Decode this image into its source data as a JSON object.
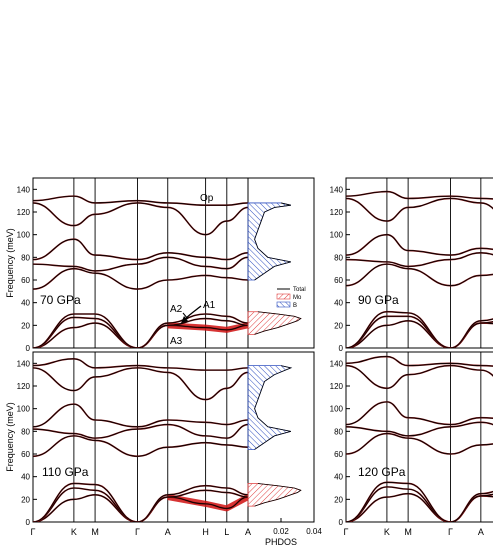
{
  "chart_data": [
    {
      "type": "line",
      "panel": "70 GPa",
      "label": "70 GPa",
      "ylabel": "Frequency (meV)",
      "ylim": [
        0,
        150
      ],
      "yticks": [
        0,
        20,
        40,
        60,
        80,
        100,
        120,
        140
      ],
      "path_labels": [
        "Γ",
        "K",
        "M",
        "Γ",
        "A",
        "H",
        "L",
        "A"
      ],
      "path_positions": [
        0,
        0.27,
        0.41,
        0.69,
        0.89,
        1.14,
        1.28,
        1.42
      ],
      "annotations": [
        "Op",
        "A1",
        "A2",
        "A3"
      ],
      "series": [
        {
          "x": [
            0,
            0.27,
            0.41,
            0.69,
            0.89,
            1.14,
            1.28,
            1.42
          ],
          "y": [
            0,
            18,
            22,
            0,
            20,
            18,
            16,
            20
          ]
        },
        {
          "x": [
            0,
            0.27,
            0.41,
            0.69,
            0.89,
            1.14,
            1.28,
            1.42
          ],
          "y": [
            0,
            27,
            26,
            0,
            20,
            26,
            24,
            20
          ]
        },
        {
          "x": [
            0,
            0.27,
            0.41,
            0.69,
            0.89,
            1.14,
            1.28,
            1.42
          ],
          "y": [
            0,
            30,
            30,
            0,
            22,
            30,
            28,
            22
          ]
        },
        {
          "x": [
            0,
            0.27,
            0.41,
            0.69,
            0.89,
            1.14,
            1.28,
            1.42
          ],
          "y": [
            52,
            70,
            66,
            52,
            60,
            64,
            62,
            60
          ]
        },
        {
          "x": [
            0,
            0.27,
            0.41,
            0.69,
            0.89,
            1.14,
            1.28,
            1.42
          ],
          "y": [
            74,
            72,
            68,
            74,
            80,
            72,
            70,
            80
          ]
        },
        {
          "x": [
            0,
            0.27,
            0.41,
            0.69,
            0.89,
            1.14,
            1.28,
            1.42
          ],
          "y": [
            78,
            96,
            82,
            78,
            84,
            80,
            78,
            84
          ]
        },
        {
          "x": [
            0,
            0.27,
            0.41,
            0.69,
            0.89,
            1.14,
            1.28,
            1.42
          ],
          "y": [
            128,
            108,
            118,
            128,
            124,
            100,
            112,
            124
          ]
        },
        {
          "x": [
            0,
            0.27,
            0.41,
            0.69,
            0.89,
            1.14,
            1.28,
            1.42
          ],
          "y": [
            130,
            134,
            128,
            130,
            128,
            126,
            126,
            128
          ]
        }
      ]
    },
    {
      "type": "line",
      "panel": "90 GPa",
      "label": "90 GPa",
      "ylim": [
        0,
        150
      ],
      "yticks": [
        0,
        20,
        40,
        60,
        80,
        100,
        120,
        140
      ],
      "path_labels": [
        "Γ",
        "K",
        "M",
        "Γ",
        "A"
      ],
      "path_positions": [
        0,
        0.27,
        0.41,
        0.69,
        0.89
      ],
      "series": [
        {
          "x": [
            0,
            0.27,
            0.41,
            0.69,
            0.89,
            1.14
          ],
          "y": [
            0,
            20,
            24,
            0,
            22,
            20
          ]
        },
        {
          "x": [
            0,
            0.27,
            0.41,
            0.69,
            0.89,
            1.14
          ],
          "y": [
            0,
            28,
            28,
            0,
            22,
            28
          ]
        },
        {
          "x": [
            0,
            0.27,
            0.41,
            0.69,
            0.89,
            1.14
          ],
          "y": [
            0,
            32,
            31,
            0,
            24,
            32
          ]
        },
        {
          "x": [
            0,
            0.27,
            0.41,
            0.69,
            0.89,
            1.14
          ],
          "y": [
            55,
            74,
            70,
            55,
            64,
            68
          ]
        },
        {
          "x": [
            0,
            0.27,
            0.41,
            0.69,
            0.89,
            1.14
          ],
          "y": [
            78,
            76,
            72,
            78,
            84,
            76
          ]
        },
        {
          "x": [
            0,
            0.27,
            0.41,
            0.69,
            0.89,
            1.14
          ],
          "y": [
            82,
            100,
            86,
            82,
            88,
            84
          ]
        },
        {
          "x": [
            0,
            0.27,
            0.41,
            0.69,
            0.89,
            1.14
          ],
          "y": [
            132,
            112,
            124,
            132,
            128,
            104
          ]
        },
        {
          "x": [
            0,
            0.27,
            0.41,
            0.69,
            0.89,
            1.14
          ],
          "y": [
            134,
            138,
            132,
            134,
            132,
            130
          ]
        }
      ]
    },
    {
      "type": "line",
      "panel": "110 GPa",
      "label": "110 GPa",
      "ylabel": "Frequency (meV)",
      "ylim": [
        0,
        150
      ],
      "yticks": [
        0,
        20,
        40,
        60,
        80,
        100,
        120,
        140
      ],
      "path_labels": [
        "Γ",
        "K",
        "M",
        "Γ",
        "A",
        "H",
        "L",
        "A"
      ],
      "path_positions": [
        0,
        0.27,
        0.41,
        0.69,
        0.89,
        1.14,
        1.28,
        1.42
      ],
      "series": [
        {
          "x": [
            0,
            0.27,
            0.41,
            0.69,
            0.89,
            1.14,
            1.28,
            1.42
          ],
          "y": [
            0,
            20,
            24,
            0,
            22,
            16,
            12,
            22
          ]
        },
        {
          "x": [
            0,
            0.27,
            0.41,
            0.69,
            0.89,
            1.14,
            1.28,
            1.42
          ],
          "y": [
            0,
            30,
            28,
            0,
            22,
            28,
            26,
            22
          ]
        },
        {
          "x": [
            0,
            0.27,
            0.41,
            0.69,
            0.89,
            1.14,
            1.28,
            1.42
          ],
          "y": [
            0,
            34,
            33,
            0,
            24,
            32,
            30,
            24
          ]
        },
        {
          "x": [
            0,
            0.27,
            0.41,
            0.69,
            0.89,
            1.14,
            1.28,
            1.42
          ],
          "y": [
            58,
            76,
            72,
            58,
            66,
            70,
            68,
            66
          ]
        },
        {
          "x": [
            0,
            0.27,
            0.41,
            0.69,
            0.89,
            1.14,
            1.28,
            1.42
          ],
          "y": [
            82,
            78,
            74,
            82,
            86,
            76,
            74,
            86
          ]
        },
        {
          "x": [
            0,
            0.27,
            0.41,
            0.69,
            0.89,
            1.14,
            1.28,
            1.42
          ],
          "y": [
            84,
            104,
            90,
            84,
            90,
            88,
            86,
            90
          ]
        },
        {
          "x": [
            0,
            0.27,
            0.41,
            0.69,
            0.89,
            1.14,
            1.28,
            1.42
          ],
          "y": [
            136,
            116,
            128,
            136,
            132,
            108,
            118,
            132
          ]
        },
        {
          "x": [
            0,
            0.27,
            0.41,
            0.69,
            0.89,
            1.14,
            1.28,
            1.42
          ],
          "y": [
            138,
            144,
            136,
            138,
            136,
            134,
            134,
            136
          ]
        }
      ]
    },
    {
      "type": "line",
      "panel": "120 GPa",
      "label": "120 GPa",
      "ylim": [
        0,
        150
      ],
      "yticks": [
        0,
        20,
        40,
        60,
        80,
        100,
        120,
        140
      ],
      "path_labels": [
        "Γ",
        "K",
        "M",
        "Γ",
        "A"
      ],
      "path_positions": [
        0,
        0.27,
        0.41,
        0.69,
        0.89
      ],
      "series": [
        {
          "x": [
            0,
            0.27,
            0.41,
            0.69,
            0.89,
            1.14
          ],
          "y": [
            0,
            22,
            25,
            0,
            23,
            20
          ]
        },
        {
          "x": [
            0,
            0.27,
            0.41,
            0.69,
            0.89,
            1.14
          ],
          "y": [
            0,
            31,
            29,
            0,
            23,
            30
          ]
        },
        {
          "x": [
            0,
            0.27,
            0.41,
            0.69,
            0.89,
            1.14
          ],
          "y": [
            0,
            35,
            34,
            0,
            25,
            34
          ]
        },
        {
          "x": [
            0,
            0.27,
            0.41,
            0.69,
            0.89,
            1.14
          ],
          "y": [
            60,
            78,
            74,
            60,
            68,
            72
          ]
        },
        {
          "x": [
            0,
            0.27,
            0.41,
            0.69,
            0.89,
            1.14
          ],
          "y": [
            84,
            80,
            76,
            84,
            88,
            78
          ]
        },
        {
          "x": [
            0,
            0.27,
            0.41,
            0.69,
            0.89,
            1.14
          ],
          "y": [
            86,
            106,
            92,
            86,
            92,
            90
          ]
        },
        {
          "x": [
            0,
            0.27,
            0.41,
            0.69,
            0.89,
            1.14
          ],
          "y": [
            138,
            118,
            130,
            138,
            134,
            110
          ]
        },
        {
          "x": [
            0,
            0.27,
            0.41,
            0.69,
            0.89,
            1.14
          ],
          "y": [
            140,
            146,
            138,
            140,
            138,
            136
          ]
        }
      ]
    },
    {
      "type": "area",
      "panel": "PHDOS",
      "xlabel": "PHDOS",
      "xlim": [
        0,
        0.04
      ],
      "xticks": [
        0.02,
        0.04
      ],
      "legend": [
        "Total",
        "Mo",
        "B"
      ],
      "legend_position": "inside",
      "series": [
        {
          "name": "Mo",
          "freq": [
            12,
            15,
            18,
            20,
            22,
            24,
            26,
            28,
            30,
            32
          ],
          "dos": [
            0.004,
            0.01,
            0.018,
            0.022,
            0.026,
            0.03,
            0.032,
            0.028,
            0.018,
            0.006
          ]
        },
        {
          "name": "B",
          "freq": [
            60,
            66,
            72,
            76,
            80,
            88,
            96,
            104,
            112,
            120,
            124,
            126,
            128
          ],
          "dos": [
            0.004,
            0.01,
            0.016,
            0.026,
            0.012,
            0.006,
            0.004,
            0.006,
            0.008,
            0.01,
            0.016,
            0.026,
            0.02
          ]
        },
        {
          "name": "Mo",
          "freq": [
            14,
            17,
            20,
            22,
            24,
            26,
            28,
            30,
            32,
            34
          ],
          "dos": [
            0.004,
            0.01,
            0.018,
            0.022,
            0.026,
            0.03,
            0.032,
            0.028,
            0.018,
            0.006
          ]
        },
        {
          "name": "B",
          "freq": [
            64,
            70,
            76,
            80,
            84,
            92,
            100,
            108,
            116,
            124,
            130,
            136,
            138
          ],
          "dos": [
            0.004,
            0.01,
            0.016,
            0.026,
            0.012,
            0.006,
            0.004,
            0.006,
            0.008,
            0.01,
            0.016,
            0.026,
            0.02
          ]
        }
      ]
    }
  ]
}
